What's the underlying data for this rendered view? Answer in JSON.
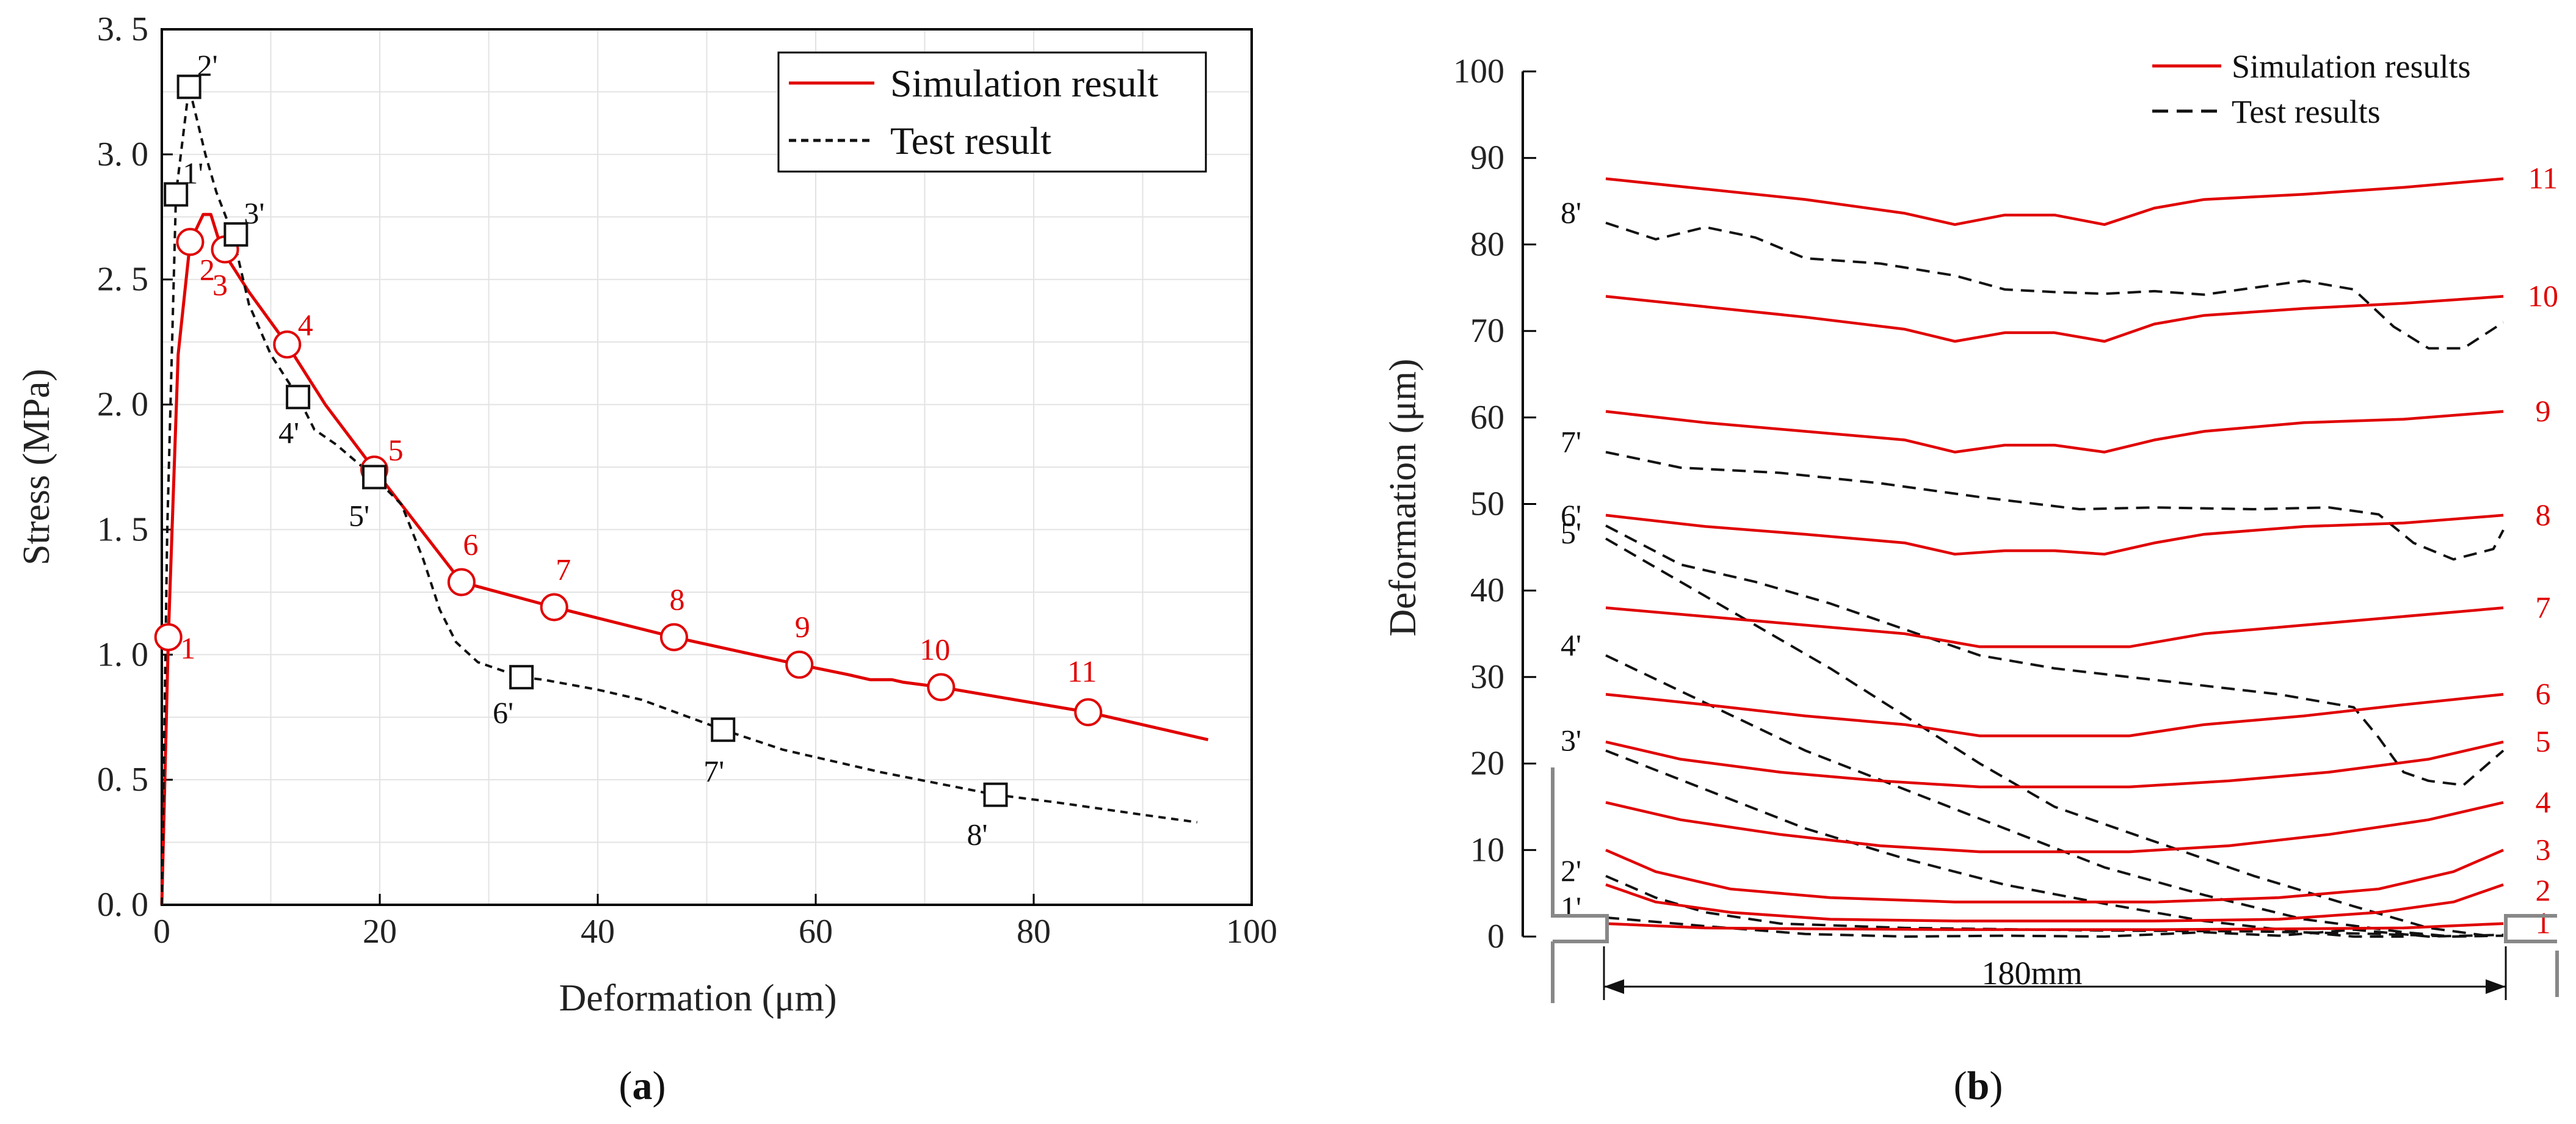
{
  "chart_data": [
    {
      "type": "line",
      "panel": "(a)",
      "panel_letter": "a",
      "xlabel": "Deformation (μm)",
      "ylabel": "Stress (MPa)",
      "xlim": [
        0,
        100
      ],
      "ylim": [
        0,
        3.5
      ],
      "xticks": [
        0,
        20,
        40,
        60,
        80,
        100
      ],
      "yticks": [
        0.0,
        0.5,
        1.0,
        1.5,
        2.0,
        2.5,
        3.0,
        3.5
      ],
      "ytick_labels": [
        "0. 0",
        "0. 5",
        "1. 0",
        "1. 5",
        "2. 0",
        "2. 5",
        "3. 0",
        "3. 5"
      ],
      "grid": true,
      "legend_position": "top-right",
      "series": [
        {
          "name": "Simulation result",
          "color": "#e00000",
          "style": "solid",
          "x": [
            0,
            0.6,
            1.5,
            2.6,
            3.8,
            4.5,
            5.5,
            8,
            11.5,
            15,
            19.5,
            27.5,
            36,
            47,
            58.5,
            63,
            65,
            67,
            68,
            71.5,
            85,
            96
          ],
          "y": [
            0,
            1.07,
            2.2,
            2.65,
            2.76,
            2.76,
            2.62,
            2.45,
            2.24,
            2.0,
            1.74,
            1.29,
            1.19,
            1.07,
            0.96,
            0.92,
            0.9,
            0.9,
            0.89,
            0.87,
            0.77,
            0.66
          ],
          "markers": [
            {
              "label": "1",
              "x": 0.6,
              "y": 1.07
            },
            {
              "label": "2",
              "x": 2.6,
              "y": 2.65
            },
            {
              "label": "3",
              "x": 5.8,
              "y": 2.62
            },
            {
              "label": "4",
              "x": 11.5,
              "y": 2.24
            },
            {
              "label": "5",
              "x": 19.5,
              "y": 1.74
            },
            {
              "label": "6",
              "x": 27.5,
              "y": 1.29
            },
            {
              "label": "7",
              "x": 36,
              "y": 1.19
            },
            {
              "label": "8",
              "x": 47,
              "y": 1.07
            },
            {
              "label": "9",
              "x": 58.5,
              "y": 0.96
            },
            {
              "label": "10",
              "x": 71.5,
              "y": 0.87
            },
            {
              "label": "11",
              "x": 85,
              "y": 0.77
            }
          ]
        },
        {
          "name": "Test result",
          "color": "#111111",
          "style": "dashed",
          "x": [
            0,
            0.5,
            1.3,
            2.5,
            4,
            5,
            6.5,
            8,
            10,
            12.5,
            14,
            16,
            19.5,
            22,
            24,
            25.5,
            27,
            29,
            33,
            35,
            40,
            44,
            51.5,
            57,
            66,
            76.5,
            82,
            90,
            95
          ],
          "y": [
            0,
            1.5,
            2.84,
            3.27,
            3.0,
            2.85,
            2.68,
            2.4,
            2.2,
            2.03,
            1.9,
            1.84,
            1.71,
            1.6,
            1.38,
            1.18,
            1.05,
            0.97,
            0.91,
            0.9,
            0.86,
            0.82,
            0.7,
            0.62,
            0.53,
            0.44,
            0.41,
            0.36,
            0.33
          ],
          "markers": [
            {
              "label": "1'",
              "x": 1.3,
              "y": 2.84
            },
            {
              "label": "2'",
              "x": 2.5,
              "y": 3.27
            },
            {
              "label": "3'",
              "x": 6.8,
              "y": 2.68
            },
            {
              "label": "4'",
              "x": 12.5,
              "y": 2.03
            },
            {
              "label": "5'",
              "x": 19.5,
              "y": 1.71
            },
            {
              "label": "6'",
              "x": 33,
              "y": 0.91
            },
            {
              "label": "7'",
              "x": 51.5,
              "y": 0.7
            },
            {
              "label": "8'",
              "x": 76.5,
              "y": 0.44
            }
          ]
        }
      ]
    },
    {
      "type": "line",
      "panel": "(b)",
      "panel_letter": "b",
      "ylabel": "Deformation (μm)",
      "xlabel": "",
      "dimension_label": "180mm",
      "x_range": [
        0,
        180
      ],
      "ylim": [
        0,
        100
      ],
      "yticks": [
        0,
        10,
        20,
        30,
        40,
        50,
        60,
        70,
        80,
        90,
        100
      ],
      "grid": false,
      "legend_position": "top-right",
      "legend": [
        {
          "name": "Simulation results",
          "color": "#e00000",
          "style": "solid"
        },
        {
          "name": "Test results",
          "color": "#111111",
          "style": "dashed"
        }
      ],
      "simulation_curves": [
        {
          "label": "1",
          "x": [
            0,
            20,
            40,
            70,
            110,
            140,
            160,
            180
          ],
          "y": [
            1.5,
            1.0,
            0.9,
            0.8,
            0.8,
            0.9,
            1.0,
            1.5
          ]
        },
        {
          "label": "2",
          "x": [
            0,
            10,
            25,
            45,
            70,
            110,
            135,
            155,
            170,
            180
          ],
          "y": [
            6.0,
            4.0,
            2.8,
            2.0,
            1.8,
            1.8,
            2.0,
            2.8,
            4.0,
            6.0
          ]
        },
        {
          "label": "3",
          "x": [
            0,
            10,
            25,
            45,
            70,
            110,
            135,
            155,
            170,
            180
          ],
          "y": [
            10.0,
            7.5,
            5.5,
            4.5,
            4.0,
            4.0,
            4.5,
            5.5,
            7.5,
            10.0
          ]
        },
        {
          "label": "4",
          "x": [
            0,
            15,
            35,
            55,
            75,
            105,
            125,
            145,
            165,
            180
          ],
          "y": [
            15.5,
            13.5,
            11.8,
            10.5,
            9.8,
            9.8,
            10.5,
            11.8,
            13.5,
            15.5
          ]
        },
        {
          "label": "5",
          "x": [
            0,
            15,
            35,
            55,
            75,
            105,
            125,
            145,
            165,
            180
          ],
          "y": [
            22.5,
            20.5,
            19.0,
            18.0,
            17.3,
            17.3,
            18.0,
            19.0,
            20.5,
            22.5
          ]
        },
        {
          "label": "6",
          "x": [
            0,
            20,
            40,
            60,
            75,
            105,
            120,
            140,
            160,
            180
          ],
          "y": [
            28.0,
            26.8,
            25.5,
            24.5,
            23.2,
            23.2,
            24.5,
            25.5,
            26.8,
            28.0
          ]
        },
        {
          "label": "7",
          "x": [
            0,
            20,
            40,
            60,
            75,
            105,
            120,
            140,
            160,
            180
          ],
          "y": [
            38.0,
            37.0,
            36.0,
            35.0,
            33.5,
            33.5,
            35.0,
            36.0,
            37.0,
            38.0
          ]
        },
        {
          "label": "8",
          "x": [
            0,
            20,
            40,
            60,
            70,
            80,
            90,
            100,
            110,
            120,
            140,
            160,
            180
          ],
          "y": [
            48.7,
            47.4,
            46.5,
            45.5,
            44.2,
            44.6,
            44.6,
            44.2,
            45.5,
            46.5,
            47.4,
            47.8,
            48.7
          ]
        },
        {
          "label": "9",
          "x": [
            0,
            20,
            40,
            60,
            70,
            80,
            90,
            100,
            110,
            120,
            140,
            160,
            180
          ],
          "y": [
            60.7,
            59.4,
            58.4,
            57.4,
            56.0,
            56.8,
            56.8,
            56.0,
            57.4,
            58.4,
            59.4,
            59.8,
            60.7
          ]
        },
        {
          "label": "10",
          "x": [
            0,
            20,
            40,
            60,
            70,
            80,
            90,
            100,
            110,
            120,
            140,
            160,
            180
          ],
          "y": [
            74.0,
            72.8,
            71.6,
            70.2,
            68.8,
            69.8,
            69.8,
            68.8,
            70.8,
            71.8,
            72.6,
            73.2,
            74.0
          ]
        },
        {
          "label": "11",
          "x": [
            0,
            20,
            40,
            60,
            70,
            80,
            90,
            100,
            110,
            120,
            140,
            160,
            180
          ],
          "y": [
            87.6,
            86.4,
            85.2,
            83.6,
            82.3,
            83.4,
            83.4,
            82.3,
            84.2,
            85.2,
            85.8,
            86.6,
            87.6
          ]
        }
      ],
      "test_curves": [
        {
          "label": "1'",
          "x": [
            0,
            20,
            40,
            60,
            80,
            100,
            120,
            135,
            150,
            165,
            180
          ],
          "y": [
            2.2,
            1.2,
            0.3,
            0.0,
            0.1,
            0.0,
            0.5,
            0.1,
            0.8,
            0.0,
            0.2
          ]
        },
        {
          "label": "2'",
          "x": [
            0,
            10,
            20,
            35,
            60,
            100,
            130,
            155,
            170,
            180
          ],
          "y": [
            7.0,
            4.5,
            2.8,
            1.5,
            1.0,
            0.7,
            0.6,
            0.3,
            0.0,
            0.1
          ]
        },
        {
          "label": "3'",
          "x": [
            0,
            20,
            40,
            60,
            80,
            100,
            120,
            140,
            150,
            160
          ],
          "y": [
            21.5,
            17.0,
            12.5,
            9.0,
            6.0,
            3.8,
            1.8,
            0.5,
            0.0,
            0.0
          ]
        },
        {
          "label": "4'",
          "x": [
            0,
            20,
            40,
            60,
            80,
            100,
            120,
            140,
            160,
            170
          ],
          "y": [
            32.5,
            27.0,
            21.5,
            17.0,
            12.5,
            8.0,
            4.8,
            2.0,
            0.5,
            0.0
          ]
        },
        {
          "label": "5'",
          "x": [
            0,
            15,
            30,
            45,
            60,
            75,
            90,
            110,
            130,
            150,
            165,
            178
          ],
          "y": [
            46.0,
            41.0,
            36.0,
            31.0,
            25.5,
            20.0,
            15.0,
            11.0,
            7.0,
            3.5,
            1.0,
            0.0
          ]
        },
        {
          "label": "6'",
          "x": [
            0,
            15,
            30,
            45,
            60,
            75,
            90,
            105,
            120,
            135,
            150,
            155,
            160,
            165,
            172,
            180
          ],
          "y": [
            47.5,
            43.0,
            41.0,
            38.5,
            35.5,
            32.5,
            31.0,
            30.0,
            29.0,
            28.0,
            26.5,
            23.0,
            19.0,
            18.0,
            17.5,
            21.5
          ]
        },
        {
          "label": "7'",
          "x": [
            0,
            15,
            35,
            55,
            75,
            95,
            110,
            130,
            145,
            155,
            162,
            170,
            178,
            180
          ],
          "y": [
            56.0,
            54.2,
            53.6,
            52.4,
            50.8,
            49.4,
            49.6,
            49.4,
            49.6,
            48.8,
            45.5,
            43.6,
            44.8,
            47.0
          ]
        },
        {
          "label": "8'",
          "x": [
            0,
            10,
            20,
            30,
            40,
            55,
            70,
            80,
            90,
            100,
            110,
            120,
            140,
            150,
            158,
            165,
            172,
            180
          ],
          "y": [
            82.5,
            80.6,
            82.0,
            80.8,
            78.4,
            77.8,
            76.4,
            74.8,
            74.5,
            74.3,
            74.6,
            74.2,
            75.8,
            74.8,
            70.5,
            68.0,
            68.0,
            71.0
          ]
        }
      ]
    }
  ]
}
